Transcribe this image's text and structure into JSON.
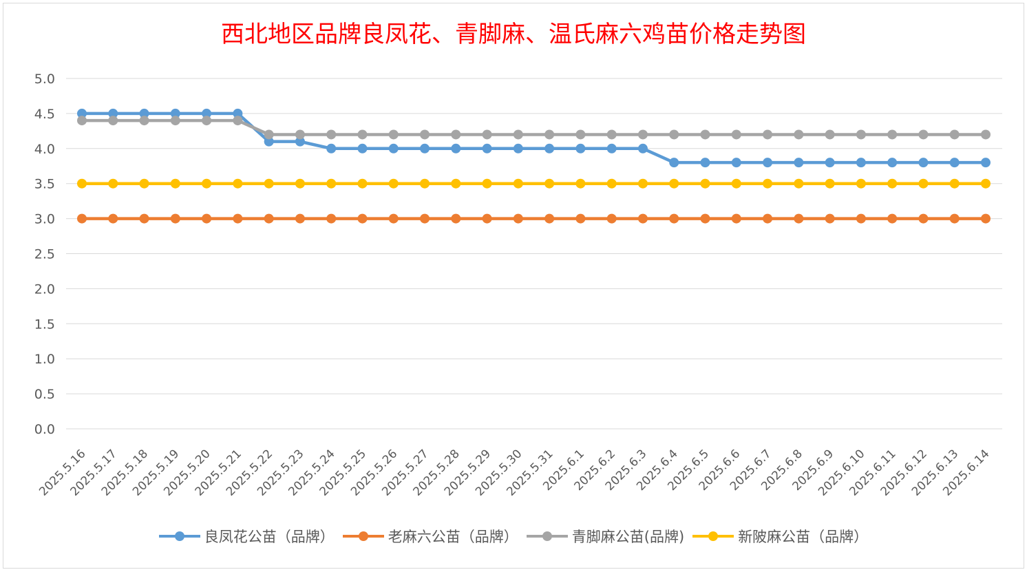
{
  "chart_data": {
    "type": "line",
    "title": "西北地区品牌良凤花、青脚麻、温氏麻六鸡苗价格走势图",
    "xlabel": "",
    "ylabel": "",
    "ylim": [
      0,
      5
    ],
    "yticks": [
      "0.0",
      "0.5",
      "1.0",
      "1.5",
      "2.0",
      "2.5",
      "3.0",
      "3.5",
      "4.0",
      "4.5",
      "5.0"
    ],
    "grid": true,
    "legend_position": "bottom",
    "categories": [
      "2025.5.16",
      "2025.5.17",
      "2025.5.18",
      "2025.5.19",
      "2025.5.20",
      "2025.5.21",
      "2025.5.22",
      "2025.5.23",
      "2025.5.24",
      "2025.5.25",
      "2025.5.26",
      "2025.5.27",
      "2025.5.28",
      "2025.5.29",
      "2025.5.30",
      "2025.5.31",
      "2025.6.1",
      "2025.6.2",
      "2025.6.3",
      "2025.6.4",
      "2025.6.5",
      "2025.6.6",
      "2025.6.7",
      "2025.6.8",
      "2025.6.9",
      "2025.6.10",
      "2025.6.11",
      "2025.6.12",
      "2025.6.13",
      "2025.6.14"
    ],
    "series": [
      {
        "name": "良凤花公苗（品牌）",
        "color": "#5b9bd5",
        "values": [
          4.5,
          4.5,
          4.5,
          4.5,
          4.5,
          4.5,
          4.1,
          4.1,
          4.0,
          4.0,
          4.0,
          4.0,
          4.0,
          4.0,
          4.0,
          4.0,
          4.0,
          4.0,
          4.0,
          3.8,
          3.8,
          3.8,
          3.8,
          3.8,
          3.8,
          3.8,
          3.8,
          3.8,
          3.8,
          3.8
        ]
      },
      {
        "name": "老麻六公苗（品牌）",
        "color": "#ed7d31",
        "values": [
          3.0,
          3.0,
          3.0,
          3.0,
          3.0,
          3.0,
          3.0,
          3.0,
          3.0,
          3.0,
          3.0,
          3.0,
          3.0,
          3.0,
          3.0,
          3.0,
          3.0,
          3.0,
          3.0,
          3.0,
          3.0,
          3.0,
          3.0,
          3.0,
          3.0,
          3.0,
          3.0,
          3.0,
          3.0,
          3.0
        ]
      },
      {
        "name": "青脚麻公苗(品牌)",
        "color": "#a5a5a5",
        "values": [
          4.4,
          4.4,
          4.4,
          4.4,
          4.4,
          4.4,
          4.2,
          4.2,
          4.2,
          4.2,
          4.2,
          4.2,
          4.2,
          4.2,
          4.2,
          4.2,
          4.2,
          4.2,
          4.2,
          4.2,
          4.2,
          4.2,
          4.2,
          4.2,
          4.2,
          4.2,
          4.2,
          4.2,
          4.2,
          4.2
        ]
      },
      {
        "name": "新陂麻公苗（品牌）",
        "color": "#ffc000",
        "values": [
          3.5,
          3.5,
          3.5,
          3.5,
          3.5,
          3.5,
          3.5,
          3.5,
          3.5,
          3.5,
          3.5,
          3.5,
          3.5,
          3.5,
          3.5,
          3.5,
          3.5,
          3.5,
          3.5,
          3.5,
          3.5,
          3.5,
          3.5,
          3.5,
          3.5,
          3.5,
          3.5,
          3.5,
          3.5,
          3.5
        ]
      }
    ]
  }
}
